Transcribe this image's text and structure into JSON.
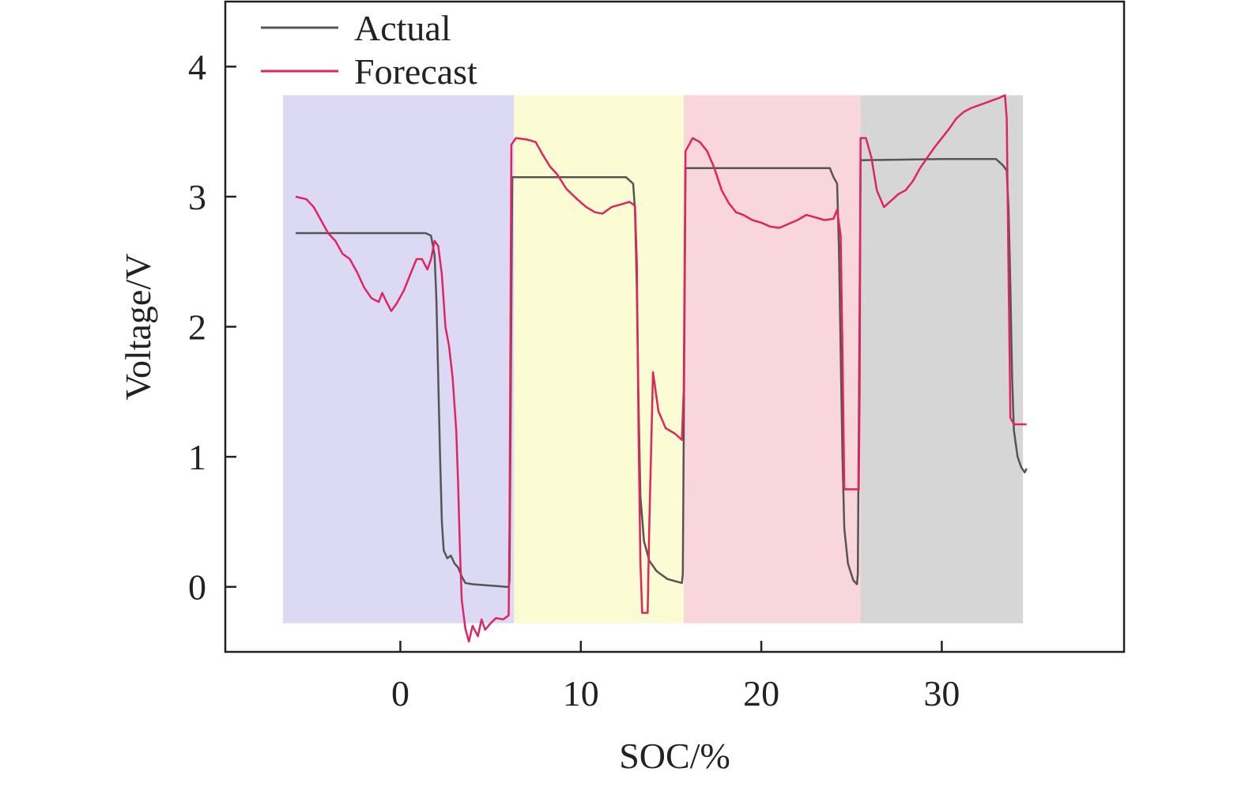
{
  "chart_data": {
    "type": "line",
    "title": "",
    "xlabel": "SOC/%",
    "ylabel": "Voltage/V",
    "xlim": [
      -9.7,
      40.1
    ],
    "ylim": [
      -0.5,
      4.5
    ],
    "xticks": [
      0,
      10,
      20,
      30
    ],
    "yticks": [
      0,
      1,
      2,
      3,
      4
    ],
    "grid": false,
    "legend_position": "top-left",
    "regions": [
      {
        "x0": -6.5,
        "x1": 6.3,
        "y0": -0.28,
        "y1": 3.78,
        "color": "#dcd9f5"
      },
      {
        "x0": 6.3,
        "x1": 15.7,
        "y0": -0.28,
        "y1": 3.78,
        "color": "#fbfbd4"
      },
      {
        "x0": 15.7,
        "x1": 25.5,
        "y0": -0.28,
        "y1": 3.78,
        "color": "#f9d5dc"
      },
      {
        "x0": 25.5,
        "x1": 34.5,
        "y0": -0.28,
        "y1": 3.78,
        "color": "#d6d6d6"
      }
    ],
    "series": [
      {
        "name": "Actual",
        "color": "#555555",
        "points": [
          [
            -5.8,
            2.72
          ],
          [
            1.4,
            2.72
          ],
          [
            1.7,
            2.7
          ],
          [
            1.9,
            2.55
          ],
          [
            2.0,
            2.2
          ],
          [
            2.1,
            1.6
          ],
          [
            2.2,
            1.0
          ],
          [
            2.3,
            0.5
          ],
          [
            2.4,
            0.28
          ],
          [
            2.6,
            0.22
          ],
          [
            2.8,
            0.24
          ],
          [
            3.0,
            0.18
          ],
          [
            3.2,
            0.15
          ],
          [
            3.4,
            0.08
          ],
          [
            3.6,
            0.03
          ],
          [
            4.0,
            0.02
          ],
          [
            5.0,
            0.01
          ],
          [
            5.9,
            0.0
          ],
          [
            6.0,
            0.0
          ],
          [
            6.05,
            0.05
          ],
          [
            6.2,
            3.15
          ],
          [
            7.5,
            3.15
          ],
          [
            12.5,
            3.15
          ],
          [
            12.9,
            3.1
          ],
          [
            13.0,
            2.9
          ],
          [
            13.1,
            2.3
          ],
          [
            13.2,
            1.4
          ],
          [
            13.3,
            0.7
          ],
          [
            13.5,
            0.35
          ],
          [
            13.8,
            0.2
          ],
          [
            14.2,
            0.12
          ],
          [
            14.8,
            0.06
          ],
          [
            15.6,
            0.03
          ],
          [
            15.65,
            0.1
          ],
          [
            15.8,
            3.22
          ],
          [
            18.0,
            3.22
          ],
          [
            23.8,
            3.22
          ],
          [
            24.0,
            3.15
          ],
          [
            24.2,
            3.1
          ],
          [
            24.3,
            2.6
          ],
          [
            24.4,
            1.8
          ],
          [
            24.5,
            1.0
          ],
          [
            24.6,
            0.45
          ],
          [
            24.8,
            0.18
          ],
          [
            25.1,
            0.05
          ],
          [
            25.3,
            0.02
          ],
          [
            25.35,
            0.1
          ],
          [
            25.5,
            3.28
          ],
          [
            30.0,
            3.29
          ],
          [
            33.0,
            3.29
          ],
          [
            33.4,
            3.24
          ],
          [
            33.6,
            3.2
          ],
          [
            33.7,
            2.9
          ],
          [
            33.8,
            2.3
          ],
          [
            33.9,
            1.6
          ],
          [
            34.0,
            1.2
          ],
          [
            34.2,
            1.0
          ],
          [
            34.4,
            0.92
          ],
          [
            34.6,
            0.88
          ],
          [
            34.7,
            0.91
          ]
        ]
      },
      {
        "name": "Forecast",
        "color": "#e0245e",
        "points": [
          [
            -5.8,
            3.0
          ],
          [
            -5.2,
            2.98
          ],
          [
            -4.8,
            2.92
          ],
          [
            -4.4,
            2.82
          ],
          [
            -4.0,
            2.72
          ],
          [
            -3.6,
            2.66
          ],
          [
            -3.2,
            2.56
          ],
          [
            -2.8,
            2.52
          ],
          [
            -2.4,
            2.42
          ],
          [
            -2.0,
            2.3
          ],
          [
            -1.6,
            2.22
          ],
          [
            -1.2,
            2.19
          ],
          [
            -1.0,
            2.26
          ],
          [
            -0.8,
            2.2
          ],
          [
            -0.5,
            2.12
          ],
          [
            -0.2,
            2.18
          ],
          [
            0.2,
            2.28
          ],
          [
            0.6,
            2.42
          ],
          [
            0.9,
            2.52
          ],
          [
            1.2,
            2.52
          ],
          [
            1.5,
            2.44
          ],
          [
            1.7,
            2.52
          ],
          [
            1.9,
            2.66
          ],
          [
            2.1,
            2.62
          ],
          [
            2.3,
            2.4
          ],
          [
            2.5,
            2.0
          ],
          [
            2.7,
            1.85
          ],
          [
            2.9,
            1.6
          ],
          [
            3.1,
            1.2
          ],
          [
            3.2,
            0.8
          ],
          [
            3.3,
            0.3
          ],
          [
            3.4,
            -0.1
          ],
          [
            3.6,
            -0.32
          ],
          [
            3.8,
            -0.42
          ],
          [
            4.0,
            -0.3
          ],
          [
            4.3,
            -0.38
          ],
          [
            4.5,
            -0.25
          ],
          [
            4.7,
            -0.33
          ],
          [
            5.0,
            -0.28
          ],
          [
            5.3,
            -0.24
          ],
          [
            5.7,
            -0.25
          ],
          [
            6.0,
            -0.22
          ],
          [
            6.05,
            0.5
          ],
          [
            6.15,
            3.4
          ],
          [
            6.4,
            3.45
          ],
          [
            7.0,
            3.44
          ],
          [
            7.5,
            3.42
          ],
          [
            7.9,
            3.32
          ],
          [
            8.3,
            3.23
          ],
          [
            8.7,
            3.17
          ],
          [
            9.2,
            3.06
          ],
          [
            9.8,
            2.98
          ],
          [
            10.3,
            2.92
          ],
          [
            10.8,
            2.88
          ],
          [
            11.2,
            2.87
          ],
          [
            11.7,
            2.92
          ],
          [
            12.2,
            2.94
          ],
          [
            12.7,
            2.96
          ],
          [
            13.0,
            2.93
          ],
          [
            13.1,
            2.5
          ],
          [
            13.2,
            1.2
          ],
          [
            13.3,
            0.2
          ],
          [
            13.4,
            -0.2
          ],
          [
            13.7,
            -0.2
          ],
          [
            13.8,
            0.5
          ],
          [
            14.0,
            1.65
          ],
          [
            14.3,
            1.35
          ],
          [
            14.7,
            1.22
          ],
          [
            15.2,
            1.18
          ],
          [
            15.6,
            1.13
          ],
          [
            15.7,
            1.5
          ],
          [
            15.8,
            3.35
          ],
          [
            16.2,
            3.45
          ],
          [
            16.6,
            3.42
          ],
          [
            17.0,
            3.35
          ],
          [
            17.4,
            3.22
          ],
          [
            17.8,
            3.05
          ],
          [
            18.2,
            2.95
          ],
          [
            18.6,
            2.88
          ],
          [
            19.0,
            2.86
          ],
          [
            19.5,
            2.82
          ],
          [
            20.0,
            2.8
          ],
          [
            20.5,
            2.77
          ],
          [
            21.0,
            2.76
          ],
          [
            21.5,
            2.79
          ],
          [
            22.0,
            2.82
          ],
          [
            22.5,
            2.86
          ],
          [
            23.0,
            2.84
          ],
          [
            23.5,
            2.82
          ],
          [
            24.0,
            2.83
          ],
          [
            24.2,
            2.9
          ],
          [
            24.4,
            2.7
          ],
          [
            24.5,
            1.8
          ],
          [
            24.6,
            0.75
          ],
          [
            25.4,
            0.75
          ],
          [
            25.45,
            1.5
          ],
          [
            25.5,
            3.45
          ],
          [
            25.8,
            3.45
          ],
          [
            26.1,
            3.3
          ],
          [
            26.4,
            3.05
          ],
          [
            26.8,
            2.92
          ],
          [
            27.2,
            2.97
          ],
          [
            27.6,
            3.02
          ],
          [
            28.0,
            3.05
          ],
          [
            28.4,
            3.12
          ],
          [
            28.8,
            3.22
          ],
          [
            29.2,
            3.3
          ],
          [
            29.6,
            3.38
          ],
          [
            30.0,
            3.45
          ],
          [
            30.4,
            3.52
          ],
          [
            30.8,
            3.6
          ],
          [
            31.2,
            3.65
          ],
          [
            31.6,
            3.68
          ],
          [
            32.0,
            3.7
          ],
          [
            32.4,
            3.72
          ],
          [
            32.8,
            3.74
          ],
          [
            33.2,
            3.76
          ],
          [
            33.5,
            3.78
          ],
          [
            33.6,
            3.6
          ],
          [
            33.7,
            2.4
          ],
          [
            33.8,
            1.3
          ],
          [
            34.0,
            1.25
          ],
          [
            34.7,
            1.25
          ]
        ]
      }
    ]
  }
}
